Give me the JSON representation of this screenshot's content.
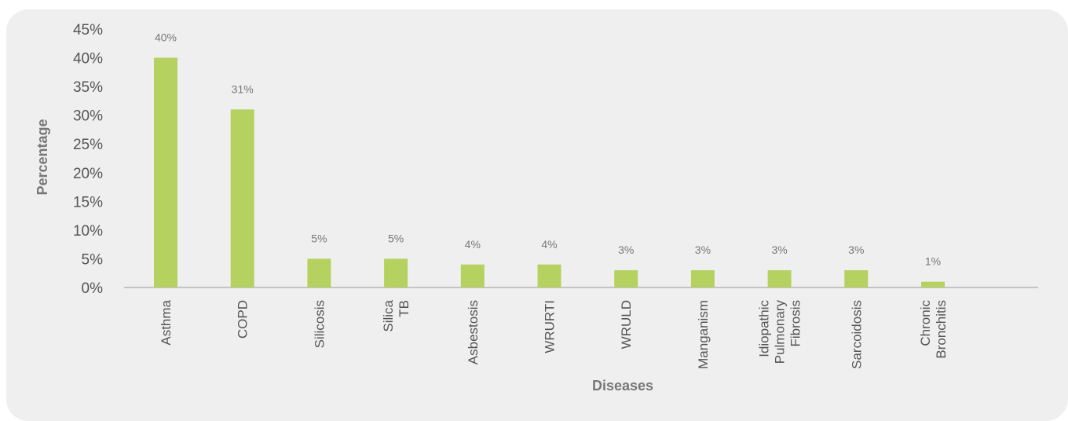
{
  "chart_data": {
    "type": "bar",
    "title": "",
    "xlabel": "Diseases",
    "ylabel": "Percentage",
    "ylim": [
      0,
      45
    ],
    "yticks": [
      "0%",
      "5%",
      "10%",
      "15%",
      "20%",
      "25%",
      "30%",
      "35%",
      "40%",
      "45%"
    ],
    "categories": [
      [
        "Asthma"
      ],
      [
        "COPD"
      ],
      [
        "Silicosis"
      ],
      [
        "Silica",
        "TB"
      ],
      [
        "Asbestosis"
      ],
      [
        "WRURTI"
      ],
      [
        "WRULD"
      ],
      [
        "Manganism"
      ],
      [
        "Idiopathic",
        "Pulmonary",
        "Fibrosis"
      ],
      [
        "Sarcoidosis"
      ],
      [
        "Chronic",
        "Bronchitis"
      ]
    ],
    "values": [
      40,
      31,
      5,
      5,
      4,
      4,
      3,
      3,
      3,
      3,
      1
    ],
    "data_labels": [
      "40%",
      "31%",
      "5%",
      "5%",
      "4%",
      "4%",
      "3%",
      "3%",
      "3%",
      "3%",
      "1%"
    ],
    "bar_color": "#b5d160",
    "grid": false,
    "legend": "none"
  }
}
